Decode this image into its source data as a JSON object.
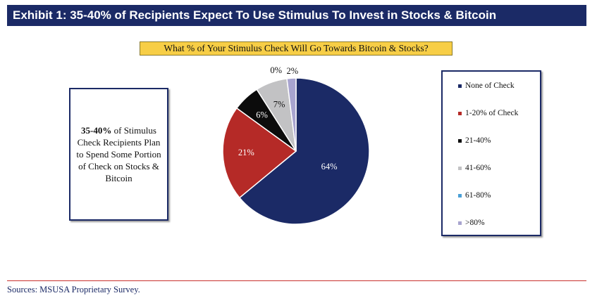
{
  "header": {
    "title": "Exhibit 1: 35-40% of Recipients Expect To Use Stimulus To Invest in Stocks & Bitcoin"
  },
  "callout": {
    "highlight": "35-40%",
    "text": " of Stimulus Check Recipients Plan to Spend Some Portion of Check on Stocks & Bitcoin"
  },
  "footer": {
    "source": "Sources: MSUSA Proprietary Survey."
  },
  "chart_data": {
    "type": "pie",
    "title": "What % of Your Stimulus Check Will Go Towards Bitcoin & Stocks?",
    "legend_position": "right",
    "slices": [
      {
        "name": "None of Check",
        "value": 64,
        "label": "64%",
        "color": "#1b2a66"
      },
      {
        "name": "1-20% of Check",
        "value": 21,
        "label": "21%",
        "color": "#b52a27"
      },
      {
        "name": "21-40%",
        "value": 6,
        "label": "6%",
        "color": "#0c0c0c"
      },
      {
        "name": "41-60%",
        "value": 7,
        "label": "7%",
        "color": "#c2c2c4"
      },
      {
        "name": "61-80%",
        "value": 0,
        "label": "0%",
        "color": "#4a9fd6"
      },
      {
        "name": ">80%",
        "value": 2,
        "label": "2%",
        "color": "#a8a4cf"
      }
    ]
  }
}
